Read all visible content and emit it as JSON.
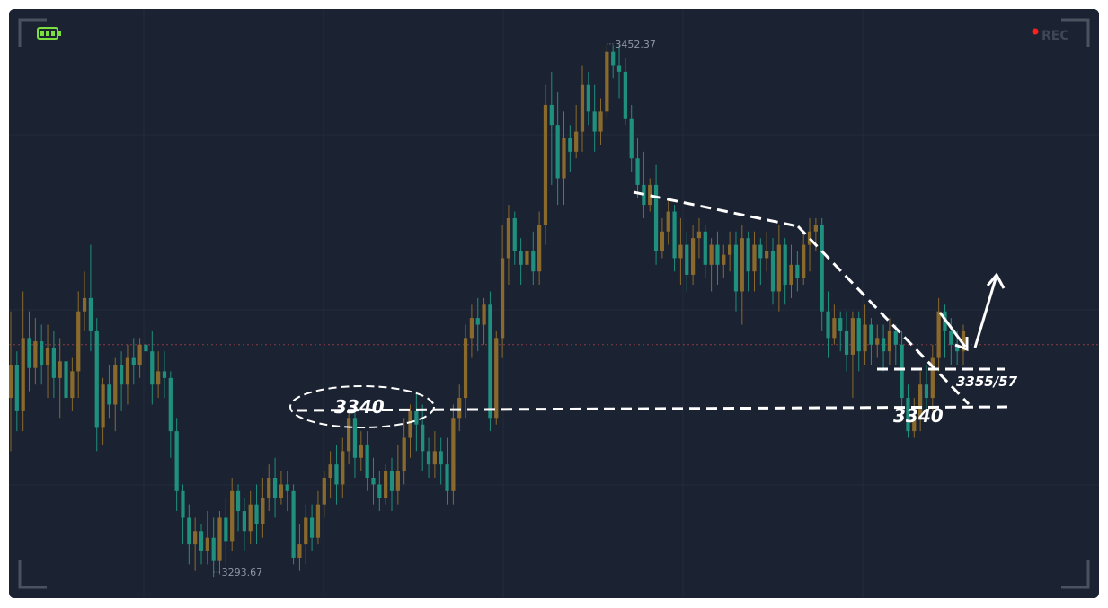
{
  "recording": {
    "label": "REC",
    "dot_color": "#ff1f1f"
  },
  "battery": {
    "icon": "battery-full-icon",
    "color": "#7ddf3f"
  },
  "colors": {
    "up": "#8a6a2c",
    "down": "#1f8f7e",
    "background": "#1b2231",
    "annotation": "#ffffff",
    "grid": "#232c3a"
  },
  "chart_data": {
    "type": "candlestick",
    "ylim": [
      3288,
      3458
    ],
    "grid": true,
    "high_label": "3452.37",
    "low_label": "3293.67",
    "high_value": 3452.37,
    "low_value": 3293.67,
    "current_price_line": 3362,
    "annotations": {
      "left_circle_label": "3340",
      "right_support_label": "3340",
      "resistance_label": "3355/57",
      "support_level": 3340,
      "resistance_level": 3356
    },
    "candles": [
      [
        3346,
        3356,
        3330,
        3372
      ],
      [
        3356,
        3342,
        3336,
        3360
      ],
      [
        3342,
        3364,
        3336,
        3378
      ],
      [
        3364,
        3355,
        3348,
        3372
      ],
      [
        3355,
        3363,
        3350,
        3370
      ],
      [
        3363,
        3356,
        3350,
        3368
      ],
      [
        3356,
        3361,
        3346,
        3368
      ],
      [
        3361,
        3352,
        3346,
        3366
      ],
      [
        3352,
        3357,
        3340,
        3364
      ],
      [
        3357,
        3346,
        3344,
        3362
      ],
      [
        3346,
        3354,
        3342,
        3358
      ],
      [
        3354,
        3372,
        3346,
        3378
      ],
      [
        3372,
        3376,
        3366,
        3384
      ],
      [
        3376,
        3366,
        3360,
        3392
      ],
      [
        3366,
        3337,
        3330,
        3370
      ],
      [
        3337,
        3350,
        3332,
        3352
      ],
      [
        3350,
        3344,
        3340,
        3356
      ],
      [
        3344,
        3356,
        3336,
        3358
      ],
      [
        3356,
        3350,
        3342,
        3360
      ],
      [
        3350,
        3358,
        3344,
        3362
      ],
      [
        3358,
        3356,
        3350,
        3364
      ],
      [
        3356,
        3362,
        3352,
        3364
      ],
      [
        3362,
        3360,
        3348,
        3368
      ],
      [
        3360,
        3350,
        3344,
        3366
      ],
      [
        3350,
        3354,
        3346,
        3360
      ],
      [
        3354,
        3352,
        3346,
        3360
      ],
      [
        3352,
        3336,
        3328,
        3354
      ],
      [
        3336,
        3318,
        3312,
        3340
      ],
      [
        3318,
        3310,
        3302,
        3320
      ],
      [
        3310,
        3302,
        3296,
        3314
      ],
      [
        3302,
        3306,
        3294,
        3310
      ],
      [
        3306,
        3300,
        3296,
        3308
      ],
      [
        3300,
        3304,
        3296,
        3312
      ],
      [
        3304,
        3297,
        3292,
        3310
      ],
      [
        3297,
        3310,
        3293,
        3312
      ],
      [
        3310,
        3303,
        3296,
        3316
      ],
      [
        3303,
        3318,
        3300,
        3322
      ],
      [
        3318,
        3312,
        3306,
        3320
      ],
      [
        3312,
        3306,
        3300,
        3316
      ],
      [
        3306,
        3314,
        3302,
        3318
      ],
      [
        3314,
        3308,
        3302,
        3320
      ],
      [
        3308,
        3316,
        3304,
        3322
      ],
      [
        3316,
        3322,
        3312,
        3326
      ],
      [
        3322,
        3316,
        3310,
        3328
      ],
      [
        3316,
        3320,
        3314,
        3324
      ],
      [
        3320,
        3318,
        3312,
        3324
      ],
      [
        3318,
        3298,
        3296,
        3320
      ],
      [
        3298,
        3302,
        3294,
        3308
      ],
      [
        3302,
        3310,
        3296,
        3314
      ],
      [
        3310,
        3304,
        3300,
        3314
      ],
      [
        3304,
        3314,
        3302,
        3318
      ],
      [
        3314,
        3322,
        3310,
        3324
      ],
      [
        3322,
        3326,
        3316,
        3330
      ],
      [
        3326,
        3320,
        3314,
        3332
      ],
      [
        3320,
        3330,
        3316,
        3334
      ],
      [
        3330,
        3340,
        3326,
        3342
      ],
      [
        3340,
        3328,
        3322,
        3344
      ],
      [
        3328,
        3332,
        3324,
        3336
      ],
      [
        3332,
        3322,
        3318,
        3336
      ],
      [
        3322,
        3320,
        3314,
        3328
      ],
      [
        3320,
        3316,
        3312,
        3324
      ],
      [
        3316,
        3324,
        3314,
        3326
      ],
      [
        3324,
        3318,
        3312,
        3328
      ],
      [
        3318,
        3324,
        3314,
        3332
      ],
      [
        3324,
        3334,
        3320,
        3340
      ],
      [
        3334,
        3342,
        3328,
        3344
      ],
      [
        3342,
        3338,
        3330,
        3348
      ],
      [
        3338,
        3330,
        3324,
        3344
      ],
      [
        3330,
        3326,
        3322,
        3334
      ],
      [
        3326,
        3330,
        3322,
        3336
      ],
      [
        3330,
        3326,
        3320,
        3334
      ],
      [
        3326,
        3318,
        3314,
        3334
      ],
      [
        3318,
        3340,
        3314,
        3344
      ],
      [
        3340,
        3346,
        3336,
        3350
      ],
      [
        3346,
        3364,
        3340,
        3368
      ],
      [
        3364,
        3370,
        3358,
        3374
      ],
      [
        3370,
        3368,
        3360,
        3376
      ],
      [
        3368,
        3374,
        3362,
        3376
      ],
      [
        3374,
        3340,
        3336,
        3378
      ],
      [
        3340,
        3364,
        3338,
        3366
      ],
      [
        3364,
        3388,
        3358,
        3398
      ],
      [
        3388,
        3400,
        3380,
        3404
      ],
      [
        3400,
        3390,
        3386,
        3402
      ],
      [
        3390,
        3386,
        3380,
        3394
      ],
      [
        3386,
        3390,
        3382,
        3394
      ],
      [
        3390,
        3384,
        3380,
        3396
      ],
      [
        3384,
        3398,
        3380,
        3402
      ],
      [
        3398,
        3434,
        3392,
        3440
      ],
      [
        3434,
        3428,
        3410,
        3444
      ],
      [
        3428,
        3412,
        3404,
        3438
      ],
      [
        3412,
        3424,
        3404,
        3432
      ],
      [
        3424,
        3420,
        3414,
        3428
      ],
      [
        3420,
        3426,
        3418,
        3434
      ],
      [
        3426,
        3440,
        3420,
        3446
      ],
      [
        3440,
        3432,
        3428,
        3444
      ],
      [
        3432,
        3426,
        3420,
        3440
      ],
      [
        3426,
        3432,
        3422,
        3436
      ],
      [
        3432,
        3450,
        3430,
        3452
      ],
      [
        3450,
        3446,
        3442,
        3452
      ],
      [
        3446,
        3444,
        3436,
        3452
      ],
      [
        3444,
        3430,
        3428,
        3448
      ],
      [
        3430,
        3418,
        3414,
        3434
      ],
      [
        3418,
        3410,
        3406,
        3424
      ],
      [
        3410,
        3404,
        3400,
        3420
      ],
      [
        3404,
        3410,
        3402,
        3412
      ],
      [
        3410,
        3390,
        3386,
        3416
      ],
      [
        3390,
        3396,
        3388,
        3400
      ],
      [
        3396,
        3402,
        3392,
        3406
      ],
      [
        3402,
        3388,
        3384,
        3404
      ],
      [
        3388,
        3392,
        3380,
        3400
      ],
      [
        3392,
        3383,
        3378,
        3396
      ],
      [
        3383,
        3394,
        3380,
        3398
      ],
      [
        3394,
        3396,
        3388,
        3400
      ],
      [
        3396,
        3386,
        3382,
        3398
      ],
      [
        3386,
        3392,
        3378,
        3394
      ],
      [
        3392,
        3386,
        3380,
        3396
      ],
      [
        3386,
        3389,
        3382,
        3392
      ],
      [
        3389,
        3392,
        3384,
        3396
      ],
      [
        3392,
        3378,
        3372,
        3396
      ],
      [
        3378,
        3394,
        3368,
        3398
      ],
      [
        3394,
        3384,
        3378,
        3396
      ],
      [
        3384,
        3392,
        3378,
        3396
      ],
      [
        3392,
        3388,
        3380,
        3394
      ],
      [
        3388,
        3390,
        3384,
        3396
      ],
      [
        3390,
        3378,
        3374,
        3394
      ],
      [
        3378,
        3392,
        3372,
        3398
      ],
      [
        3392,
        3380,
        3374,
        3394
      ],
      [
        3380,
        3386,
        3376,
        3392
      ],
      [
        3386,
        3382,
        3378,
        3390
      ],
      [
        3382,
        3392,
        3380,
        3396
      ],
      [
        3392,
        3396,
        3384,
        3400
      ],
      [
        3396,
        3398,
        3390,
        3400
      ],
      [
        3398,
        3372,
        3366,
        3400
      ],
      [
        3372,
        3364,
        3358,
        3378
      ],
      [
        3364,
        3370,
        3362,
        3374
      ],
      [
        3370,
        3366,
        3360,
        3372
      ],
      [
        3366,
        3359,
        3354,
        3372
      ],
      [
        3359,
        3370,
        3346,
        3372
      ],
      [
        3370,
        3360,
        3354,
        3372
      ],
      [
        3360,
        3368,
        3356,
        3374
      ],
      [
        3368,
        3362,
        3356,
        3370
      ],
      [
        3362,
        3364,
        3358,
        3368
      ],
      [
        3364,
        3360,
        3354,
        3368
      ],
      [
        3360,
        3366,
        3356,
        3370
      ],
      [
        3366,
        3362,
        3356,
        3368
      ],
      [
        3362,
        3346,
        3340,
        3366
      ],
      [
        3346,
        3336,
        3334,
        3350
      ],
      [
        3336,
        3340,
        3334,
        3346
      ],
      [
        3340,
        3350,
        3336,
        3354
      ],
      [
        3350,
        3346,
        3340,
        3356
      ],
      [
        3346,
        3358,
        3342,
        3362
      ],
      [
        3358,
        3372,
        3354,
        3376
      ],
      [
        3372,
        3366,
        3358,
        3374
      ],
      [
        3366,
        3362,
        3356,
        3370
      ],
      [
        3362,
        3360,
        3356,
        3366
      ],
      [
        3360,
        3366,
        3356,
        3368
      ]
    ]
  }
}
